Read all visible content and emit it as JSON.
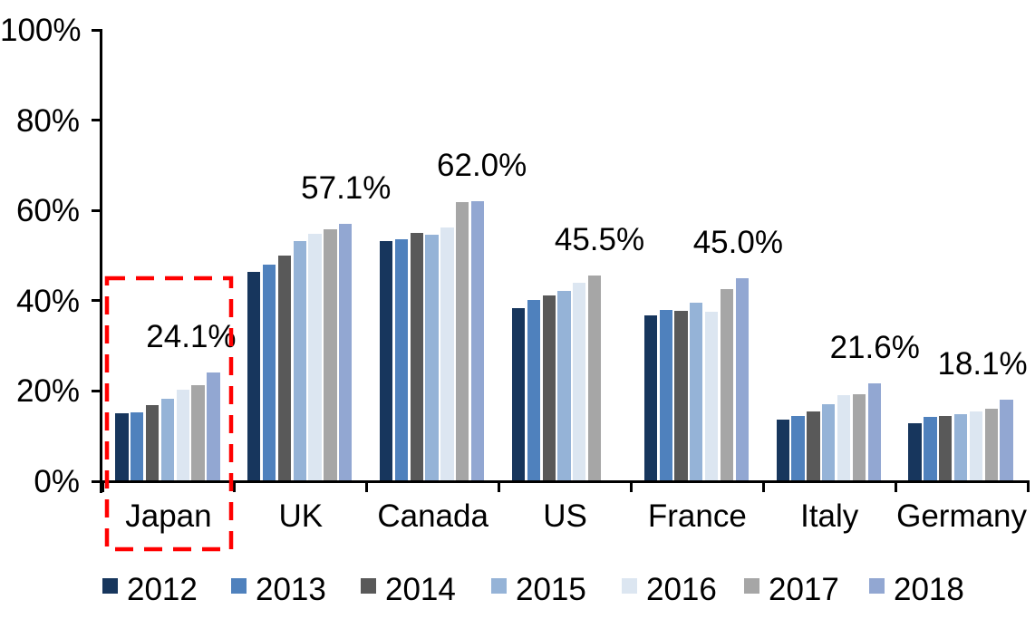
{
  "chart_data": {
    "type": "bar",
    "categories": [
      "Japan",
      "UK",
      "Canada",
      "US",
      "France",
      "Italy",
      "Germany"
    ],
    "series": [
      {
        "name": "2012",
        "color": "#17365D",
        "values": [
          15.1,
          46.4,
          53.2,
          38.3,
          36.7,
          13.6,
          12.8
        ]
      },
      {
        "name": "2013",
        "color": "#4F81BD",
        "values": [
          15.3,
          47.9,
          53.7,
          40.2,
          37.9,
          14.4,
          14.3
        ]
      },
      {
        "name": "2014",
        "color": "#595959",
        "values": [
          16.9,
          50.1,
          55.1,
          41.2,
          37.8,
          15.5,
          14.5
        ]
      },
      {
        "name": "2015",
        "color": "#95B3D7",
        "values": [
          18.2,
          53.2,
          54.7,
          42.2,
          39.6,
          17.1,
          14.9
        ]
      },
      {
        "name": "2016",
        "color": "#DCE6F1",
        "values": [
          20.2,
          54.9,
          56.3,
          43.9,
          37.5,
          19.1,
          15.5
        ]
      },
      {
        "name": "2017",
        "color": "#A6A6A6",
        "values": [
          21.3,
          55.8,
          61.8,
          45.5,
          42.5,
          19.3,
          16.1
        ]
      },
      {
        "name": "2018",
        "color": "#92A7D2",
        "values": [
          24.1,
          57.1,
          62.0,
          null,
          45.0,
          21.6,
          18.1
        ]
      }
    ],
    "data_labels": [
      "24.1%",
      "57.1%",
      "62.0%",
      "45.5%",
      "45.0%",
      "21.6%",
      "18.1%"
    ],
    "y_ticks": [
      {
        "value": 100,
        "label": "100%"
      },
      {
        "value": 80,
        "label": "80%"
      },
      {
        "value": 60,
        "label": "60%"
      },
      {
        "value": 40,
        "label": "40%"
      },
      {
        "value": 20,
        "label": "20%"
      },
      {
        "value": 0,
        "label": "0%"
      }
    ],
    "ylim": [
      0,
      100
    ],
    "grid": false,
    "legend_position": "bottom",
    "legend_entries": [
      "2012",
      "2013",
      "2014",
      "2015",
      "2016",
      "2017",
      "2018"
    ],
    "colors": {
      "background": "#FFFFFF",
      "axis": "#000000",
      "text": "#000000",
      "highlight": "#FF0000"
    },
    "highlight": {
      "category": "Japan",
      "style": "red-dashed-rectangle"
    }
  }
}
